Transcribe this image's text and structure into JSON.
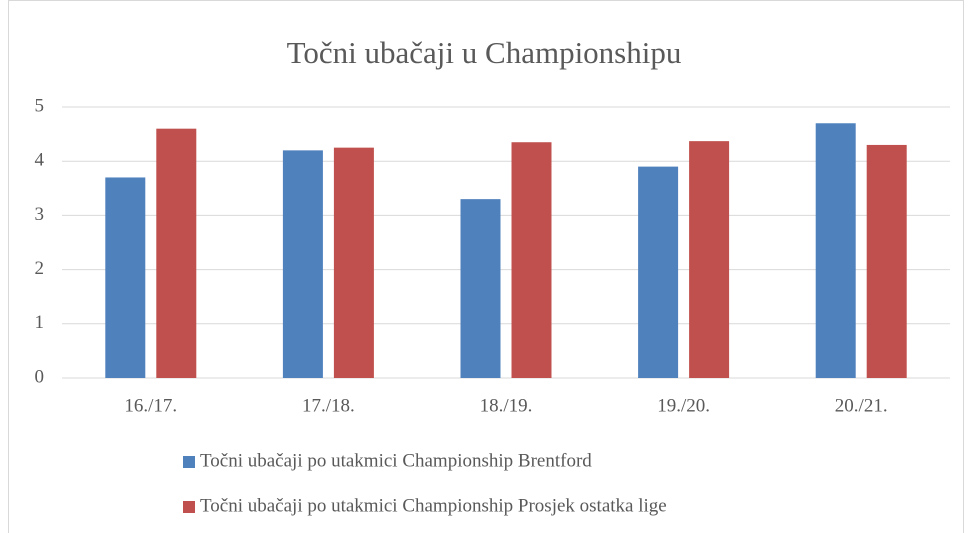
{
  "chart_data": {
    "type": "bar",
    "title": "Točni ubačaji u Championshipu",
    "categories": [
      "16./17.",
      "17./18.",
      "18./19.",
      "19./20.",
      "20./21."
    ],
    "series": [
      {
        "name": "Točni ubačaji po utakmici Championship Brentford",
        "color": "#4f81bd",
        "values": [
          3.7,
          4.2,
          3.3,
          3.9,
          4.7
        ]
      },
      {
        "name": "Točni ubačaji po utakmici Championship Prosjek ostatka lige",
        "color": "#c0504d",
        "values": [
          4.6,
          4.25,
          4.35,
          4.37,
          4.3
        ]
      }
    ],
    "ylim": [
      0,
      5
    ],
    "yticks": [
      0,
      1,
      2,
      3,
      4,
      5
    ],
    "grid": true,
    "legend": "bottom"
  }
}
